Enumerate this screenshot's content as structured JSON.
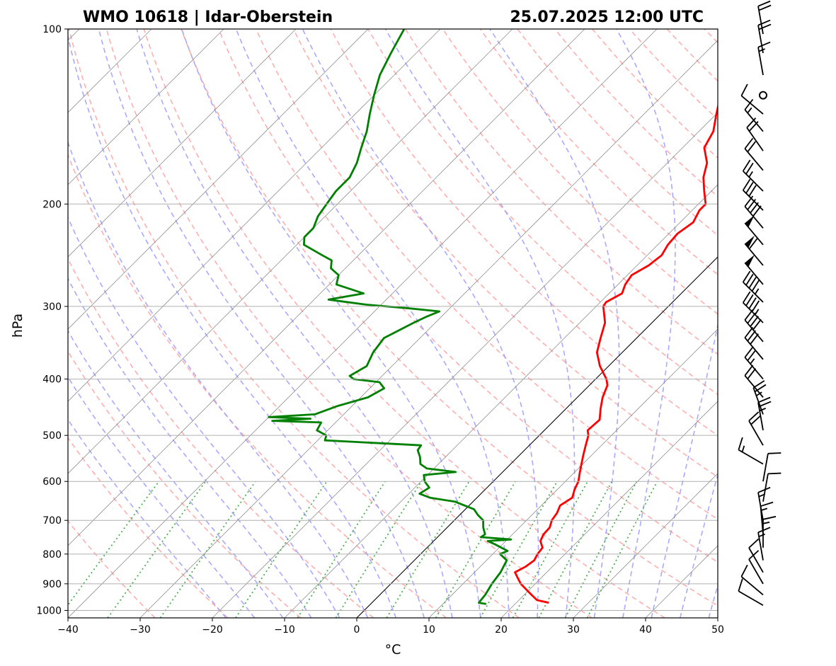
{
  "chart_data": {
    "type": "skew-t",
    "title_left": "WMO 10618 | Idar-Oberstein",
    "title_right": "25.07.2025 12:00 UTC",
    "xlabel": "°C",
    "ylabel": "hPa",
    "x_ticks": [
      "−40",
      "−30",
      "−20",
      "−10",
      "0",
      "10",
      "20",
      "30",
      "40",
      "50"
    ],
    "y_ticks": [
      "100",
      "200",
      "300",
      "400",
      "500",
      "600",
      "700",
      "800",
      "900",
      "1000"
    ],
    "xlim": [
      -40,
      50
    ],
    "ylim_hpa": [
      1030,
      100
    ],
    "log_pressure_axis": true,
    "grid": true,
    "reference_line_colors": {
      "isotherms": "#808080",
      "dry_adiabats": "#ff9a9a",
      "moist_adiabats": "#9a9aff",
      "mixing_ratio": "#4caf50",
      "zero_isotherm": "#000000"
    },
    "series": [
      {
        "color": "#ff0000",
        "points": [
          [
            970,
            24.5
          ],
          [
            960,
            22.5
          ],
          [
            940,
            21.0
          ],
          [
            920,
            19.5
          ],
          [
            900,
            18.0
          ],
          [
            880,
            16.8
          ],
          [
            860,
            15.6
          ],
          [
            840,
            16.3
          ],
          [
            820,
            16.6
          ],
          [
            800,
            16.2
          ],
          [
            780,
            16.0
          ],
          [
            760,
            14.8
          ],
          [
            740,
            14.3
          ],
          [
            720,
            14.2
          ],
          [
            700,
            13.5
          ],
          [
            680,
            13.2
          ],
          [
            660,
            12.6
          ],
          [
            640,
            13.2
          ],
          [
            620,
            12.4
          ],
          [
            600,
            11.8
          ],
          [
            580,
            10.8
          ],
          [
            560,
            9.8
          ],
          [
            540,
            8.8
          ],
          [
            520,
            7.8
          ],
          [
            500,
            6.8
          ],
          [
            490,
            6.0
          ],
          [
            470,
            6.2
          ],
          [
            450,
            4.8
          ],
          [
            430,
            3.5
          ],
          [
            410,
            2.5
          ],
          [
            400,
            1.5
          ],
          [
            380,
            -1.2
          ],
          [
            360,
            -3.5
          ],
          [
            340,
            -5.0
          ],
          [
            320,
            -6.5
          ],
          [
            300,
            -9.0
          ],
          [
            295,
            -9.2
          ],
          [
            285,
            -8.2
          ],
          [
            275,
            -9.0
          ],
          [
            265,
            -9.4
          ],
          [
            255,
            -8.4
          ],
          [
            245,
            -8.0
          ],
          [
            235,
            -8.6
          ],
          [
            225,
            -8.8
          ],
          [
            215,
            -8.2
          ],
          [
            205,
            -9.0
          ],
          [
            200,
            -9.0
          ],
          [
            190,
            -11.0
          ],
          [
            180,
            -13.0
          ],
          [
            170,
            -14.5
          ],
          [
            160,
            -17.0
          ],
          [
            150,
            -18.0
          ],
          [
            140,
            -20.0
          ],
          [
            130,
            -22.0
          ],
          [
            120,
            -24.0
          ],
          [
            110,
            -27.0
          ],
          [
            105,
            -29.0
          ],
          [
            100,
            -30.0
          ]
        ]
      },
      {
        "color": "#008000",
        "points": [
          [
            975,
            16.0
          ],
          [
            970,
            14.8
          ],
          [
            940,
            14.6
          ],
          [
            900,
            14.0
          ],
          [
            860,
            13.6
          ],
          [
            820,
            12.8
          ],
          [
            800,
            11.0
          ],
          [
            790,
            11.6
          ],
          [
            770,
            9.0
          ],
          [
            760,
            7.5
          ],
          [
            755,
            10.5
          ],
          [
            748,
            6.0
          ],
          [
            740,
            6.2
          ],
          [
            720,
            5.0
          ],
          [
            700,
            4.0
          ],
          [
            685,
            2.5
          ],
          [
            670,
            1.2
          ],
          [
            650,
            -2.5
          ],
          [
            640,
            -6.5
          ],
          [
            630,
            -8.5
          ],
          [
            615,
            -8.0
          ],
          [
            600,
            -9.5
          ],
          [
            585,
            -10.5
          ],
          [
            578,
            -6.5
          ],
          [
            570,
            -11.0
          ],
          [
            560,
            -12.5
          ],
          [
            545,
            -13.5
          ],
          [
            530,
            -14.8
          ],
          [
            520,
            -15.0
          ],
          [
            515,
            -22.0
          ],
          [
            510,
            -29.0
          ],
          [
            500,
            -29.5
          ],
          [
            490,
            -31.5
          ],
          [
            475,
            -32.0
          ],
          [
            472,
            -39.0
          ],
          [
            468,
            -34.0
          ],
          [
            465,
            -40.0
          ],
          [
            460,
            -34.0
          ],
          [
            445,
            -32.0
          ],
          [
            430,
            -29.0
          ],
          [
            415,
            -28.0
          ],
          [
            405,
            -29.5
          ],
          [
            400,
            -33.5
          ],
          [
            395,
            -34.5
          ],
          [
            380,
            -33.5
          ],
          [
            360,
            -34.5
          ],
          [
            340,
            -35.0
          ],
          [
            330,
            -34.0
          ],
          [
            320,
            -33.0
          ],
          [
            312,
            -32.0
          ],
          [
            306,
            -31.0
          ],
          [
            302,
            -36.0
          ],
          [
            298,
            -42.0
          ],
          [
            292,
            -48.0
          ],
          [
            285,
            -44.0
          ],
          [
            275,
            -49.0
          ],
          [
            265,
            -50.0
          ],
          [
            258,
            -52.0
          ],
          [
            250,
            -53.0
          ],
          [
            245,
            -55.0
          ],
          [
            235,
            -59.0
          ],
          [
            228,
            -60.0
          ],
          [
            220,
            -60.0
          ],
          [
            210,
            -61.0
          ],
          [
            200,
            -61.5
          ],
          [
            190,
            -62.0
          ],
          [
            180,
            -62.0
          ],
          [
            170,
            -63.0
          ],
          [
            160,
            -64.5
          ],
          [
            150,
            -66.0
          ],
          [
            140,
            -68.0
          ],
          [
            130,
            -70.0
          ],
          [
            120,
            -72.0
          ],
          [
            110,
            -73.5
          ],
          [
            100,
            -75.0
          ]
        ]
      }
    ],
    "wind_barbs": [
      {
        "p": 980,
        "dir": 300,
        "kt": 10
      },
      {
        "p": 940,
        "dir": 310,
        "kt": 10
      },
      {
        "p": 900,
        "dir": 330,
        "kt": 10
      },
      {
        "p": 860,
        "dir": 330,
        "kt": 10
      },
      {
        "p": 820,
        "dir": 350,
        "kt": 15
      },
      {
        "p": 780,
        "dir": 360,
        "kt": 15
      },
      {
        "p": 740,
        "dir": 355,
        "kt": 15
      },
      {
        "p": 700,
        "dir": 350,
        "kt": 15
      },
      {
        "p": 650,
        "dir": 10,
        "kt": 10
      },
      {
        "p": 600,
        "dir": 10,
        "kt": 10
      },
      {
        "p": 560,
        "dir": 300,
        "kt": 15
      },
      {
        "p": 520,
        "dir": 330,
        "kt": 20
      },
      {
        "p": 490,
        "dir": 350,
        "kt": 25
      },
      {
        "p": 460,
        "dir": 340,
        "kt": 25
      },
      {
        "p": 430,
        "dir": 320,
        "kt": 20
      },
      {
        "p": 400,
        "dir": 320,
        "kt": 25
      },
      {
        "p": 370,
        "dir": 320,
        "kt": 30
      },
      {
        "p": 345,
        "dir": 320,
        "kt": 40
      },
      {
        "p": 320,
        "dir": 315,
        "kt": 45
      },
      {
        "p": 295,
        "dir": 315,
        "kt": 45
      },
      {
        "p": 275,
        "dir": 320,
        "kt": 50
      },
      {
        "p": 255,
        "dir": 320,
        "kt": 60
      },
      {
        "p": 235,
        "dir": 320,
        "kt": 50
      },
      {
        "p": 220,
        "dir": 320,
        "kt": 40
      },
      {
        "p": 205,
        "dir": 315,
        "kt": 30
      },
      {
        "p": 190,
        "dir": 315,
        "kt": 25
      },
      {
        "p": 175,
        "dir": 320,
        "kt": 20
      },
      {
        "p": 162,
        "dir": 325,
        "kt": 20
      },
      {
        "p": 150,
        "dir": 320,
        "kt": 15
      },
      {
        "p": 140,
        "dir": 310,
        "kt": 10
      },
      {
        "p": 130,
        "dir": 0,
        "kt": 0
      },
      {
        "p": 120,
        "dir": 350,
        "kt": 15
      },
      {
        "p": 110,
        "dir": 350,
        "kt": 20
      },
      {
        "p": 102,
        "dir": 350,
        "kt": 20
      }
    ]
  }
}
